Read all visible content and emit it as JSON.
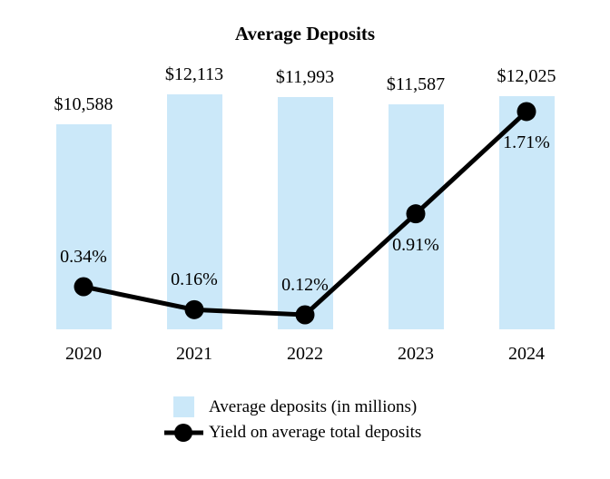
{
  "chart_data": {
    "type": "combo",
    "title": "Average Deposits",
    "categories": [
      "2020",
      "2021",
      "2022",
      "2023",
      "2024"
    ],
    "series": [
      {
        "name": "Average deposits (in millions)",
        "type": "bar",
        "values": [
          10588,
          12113,
          11993,
          11587,
          12025
        ],
        "labels": [
          "$10,588",
          "$12,113",
          "$11,993",
          "$11,587",
          "$12,025"
        ],
        "color": "#cbe8f9"
      },
      {
        "name": "Yield on average total deposits",
        "type": "line",
        "values": [
          0.34,
          0.16,
          0.12,
          0.91,
          1.71
        ],
        "labels": [
          "0.34%",
          "0.16%",
          "0.12%",
          "0.91%",
          "1.71%"
        ],
        "color": "#000000"
      }
    ],
    "legend_position": "bottom",
    "grid": false,
    "axes_hidden": true,
    "bar_axis_min": 0,
    "line_axis_min_pct": 0
  }
}
